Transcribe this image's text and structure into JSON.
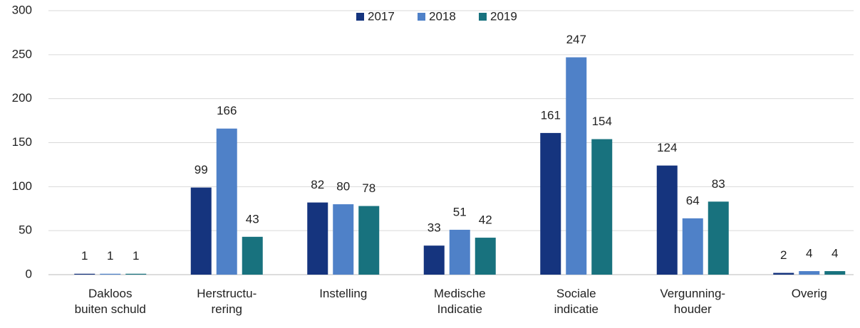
{
  "chart_data": {
    "type": "bar",
    "categories": [
      "Dakloos\nbuiten schuld",
      "Herstructu-\nrering",
      "Instelling",
      "Medische\nIndicatie",
      "Sociale\nindicatie",
      "Vergunning-\nhouder",
      "Overig"
    ],
    "series": [
      {
        "name": "2017",
        "color": "#15347e",
        "values": [
          1,
          99,
          82,
          33,
          161,
          124,
          2
        ]
      },
      {
        "name": "2018",
        "color": "#4f81c8",
        "values": [
          1,
          166,
          80,
          51,
          247,
          64,
          4
        ]
      },
      {
        "name": "2019",
        "color": "#18727e",
        "values": [
          1,
          43,
          78,
          42,
          154,
          83,
          4
        ]
      }
    ],
    "ylim": [
      0,
      300
    ],
    "yticks": [
      0,
      50,
      100,
      150,
      200,
      250,
      300
    ],
    "grid": true,
    "legend": "top"
  }
}
